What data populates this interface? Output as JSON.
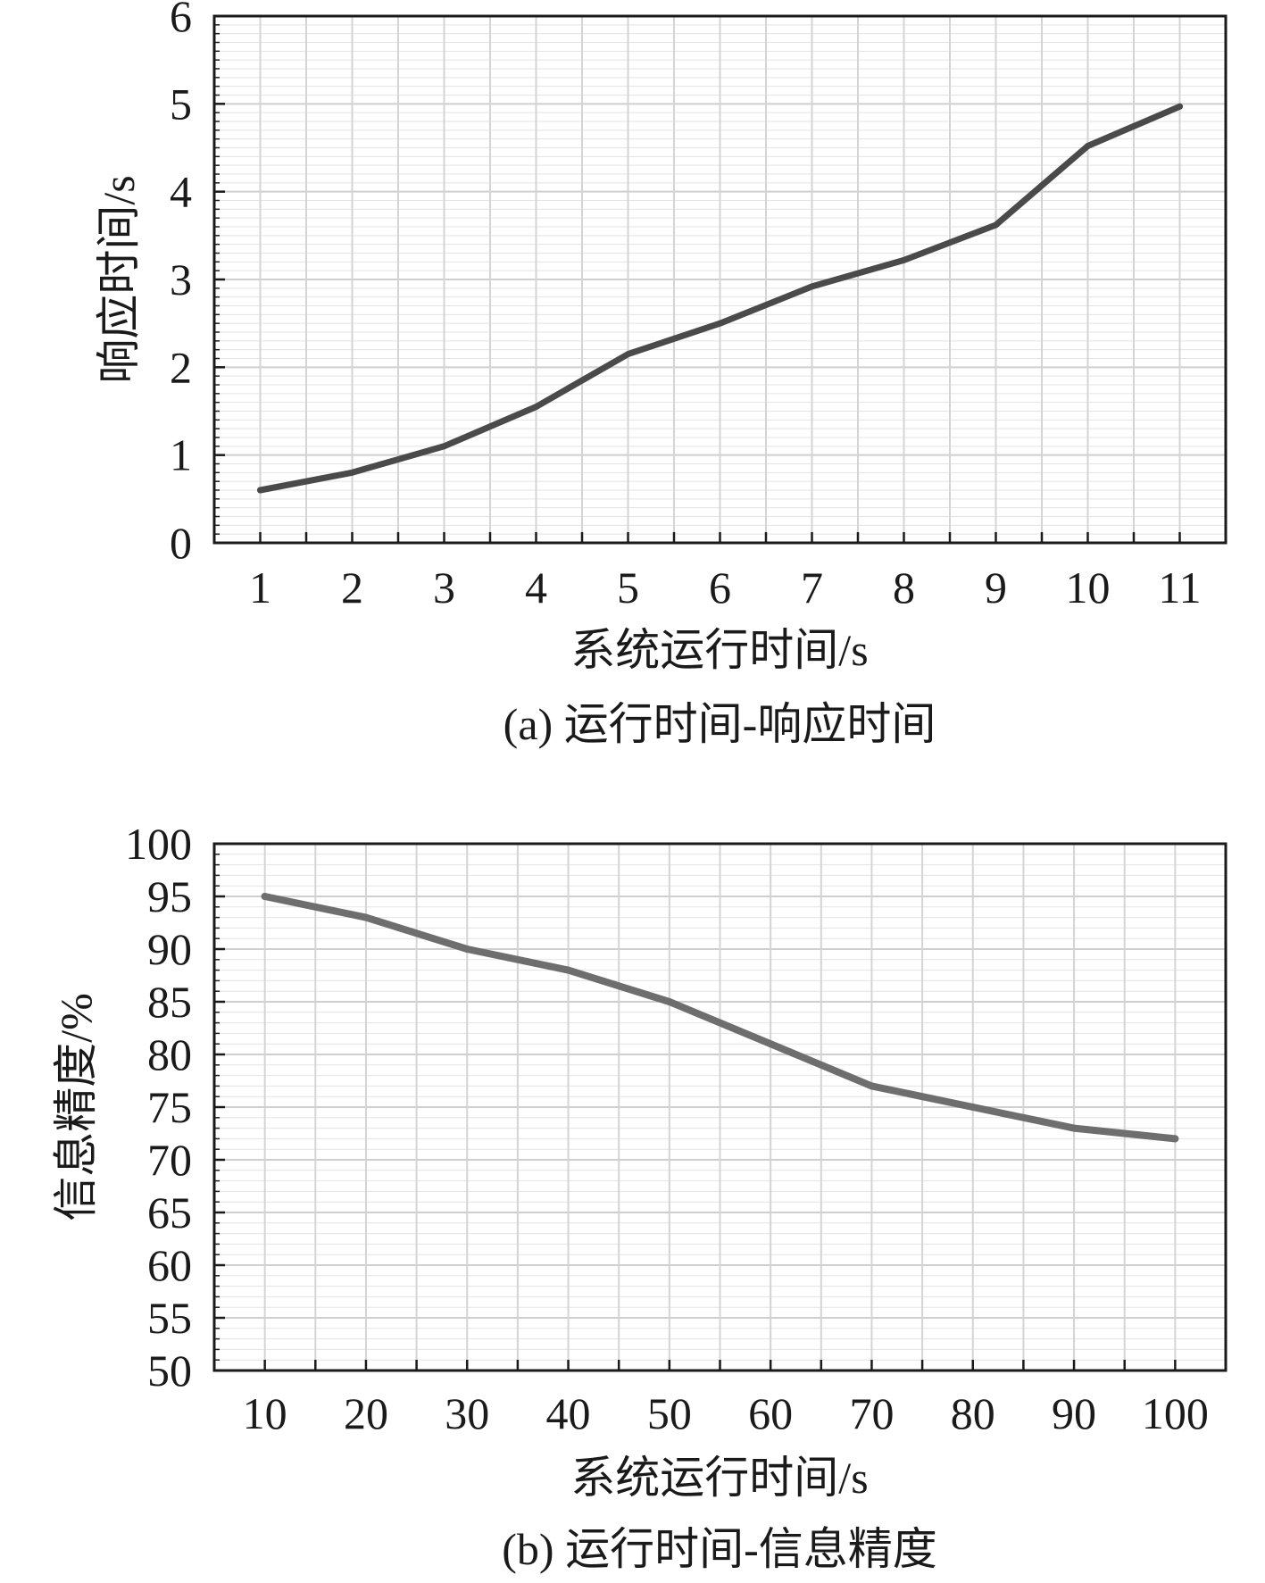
{
  "chart_data": [
    {
      "type": "line",
      "caption": "(a) 运行时间-响应时间",
      "xlabel": "系统运行时间/s",
      "ylabel": "响应时间/s",
      "x": [
        1,
        2,
        3,
        4,
        5,
        6,
        7,
        8,
        9,
        10,
        11
      ],
      "x_tick_labels": [
        "1",
        "2",
        "3",
        "4",
        "5",
        "6",
        "7",
        "8",
        "9",
        "10",
        "11"
      ],
      "xlim": [
        0.5,
        11.5
      ],
      "ylim": [
        0,
        6
      ],
      "y_ticks": [
        0,
        1,
        2,
        3,
        4,
        5,
        6
      ],
      "y_tick_labels": [
        "0",
        "1",
        "2",
        "3",
        "4",
        "5",
        "6"
      ],
      "y_minor_step": 0.1,
      "series": [
        {
          "name": "响应时间",
          "color": "#4a4a4a",
          "values": [
            0.6,
            0.8,
            1.1,
            1.55,
            2.15,
            2.5,
            2.92,
            3.22,
            3.62,
            4.52,
            4.97
          ]
        }
      ]
    },
    {
      "type": "line",
      "caption": "(b) 运行时间-信息精度",
      "xlabel": "系统运行时间/s",
      "ylabel": "信息精度/%",
      "x": [
        10,
        20,
        30,
        40,
        50,
        60,
        70,
        80,
        90,
        100
      ],
      "x_tick_labels": [
        "10",
        "20",
        "30",
        "40",
        "50",
        "60",
        "70",
        "80",
        "90",
        "100"
      ],
      "xlim": [
        5,
        105
      ],
      "ylim": [
        50,
        100
      ],
      "y_ticks": [
        50,
        55,
        60,
        65,
        70,
        75,
        80,
        85,
        90,
        95,
        100
      ],
      "y_tick_labels": [
        "50",
        "55",
        "60",
        "65",
        "70",
        "75",
        "80",
        "85",
        "90",
        "95",
        "100"
      ],
      "y_minor_step": 1,
      "series": [
        {
          "name": "信息精度",
          "color": "#6e6e6e",
          "values": [
            95,
            93,
            90,
            88,
            85,
            81,
            77,
            75,
            73,
            72
          ]
        }
      ]
    }
  ]
}
